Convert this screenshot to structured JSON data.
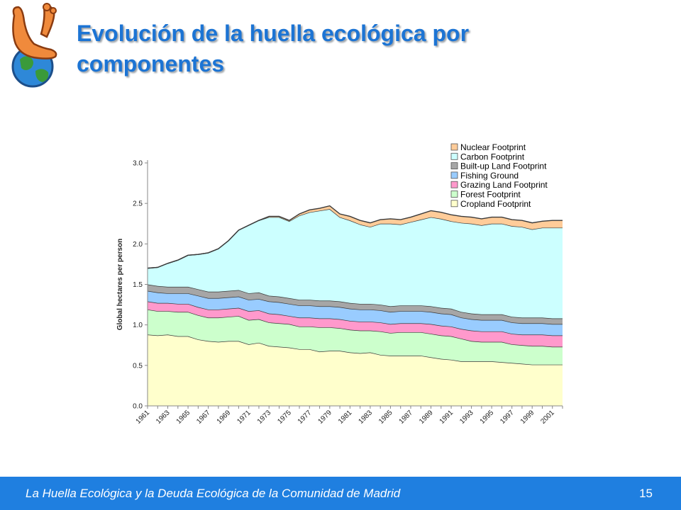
{
  "slide": {
    "title_line1": "Evolución de la huella ecológica por",
    "title_line2": "componentes",
    "footer_text": "La Huella Ecológica y la Deuda Ecológica de la Comunidad de Madrid",
    "page_number": "15",
    "accent_color": "#1c74d4",
    "footer_color": "#1f7fe0"
  },
  "chart_data": {
    "type": "area",
    "stacked": true,
    "ylabel": "Global hectares per person",
    "xlabel": "",
    "ylim": [
      0,
      3.0
    ],
    "yticks": [
      "0.0",
      "0.5",
      "1.0",
      "1.5",
      "2.0",
      "2.5",
      "3.0"
    ],
    "xticks": [
      "1961",
      "1963",
      "1965",
      "1967",
      "1969",
      "1971",
      "1973",
      "1975",
      "1977",
      "1979",
      "1981",
      "1983",
      "1985",
      "1987",
      "1989",
      "1991",
      "1993",
      "1995",
      "1997",
      "1999",
      "2001"
    ],
    "x": [
      1961,
      1962,
      1963,
      1964,
      1965,
      1966,
      1967,
      1968,
      1969,
      1970,
      1971,
      1972,
      1973,
      1974,
      1975,
      1976,
      1977,
      1978,
      1979,
      1980,
      1981,
      1982,
      1983,
      1984,
      1985,
      1986,
      1987,
      1988,
      1989,
      1990,
      1991,
      1992,
      1993,
      1994,
      1995,
      1996,
      1997,
      1998,
      1999,
      2000,
      2001,
      2002
    ],
    "legend_position": "top-right",
    "grid": false,
    "series": [
      {
        "name": "Cropland Footprint",
        "color": "#ffffcc",
        "values": [
          0.88,
          0.87,
          0.88,
          0.86,
          0.86,
          0.82,
          0.8,
          0.79,
          0.8,
          0.8,
          0.76,
          0.78,
          0.74,
          0.73,
          0.72,
          0.7,
          0.7,
          0.67,
          0.68,
          0.68,
          0.66,
          0.65,
          0.66,
          0.63,
          0.62,
          0.62,
          0.62,
          0.62,
          0.6,
          0.58,
          0.57,
          0.55,
          0.55,
          0.55,
          0.55,
          0.54,
          0.53,
          0.52,
          0.51,
          0.51,
          0.51,
          0.51
        ]
      },
      {
        "name": "Forest Footprint",
        "color": "#ccffcc",
        "values": [
          0.31,
          0.3,
          0.29,
          0.3,
          0.3,
          0.3,
          0.29,
          0.3,
          0.3,
          0.31,
          0.3,
          0.29,
          0.29,
          0.29,
          0.29,
          0.28,
          0.28,
          0.3,
          0.29,
          0.28,
          0.28,
          0.28,
          0.27,
          0.29,
          0.28,
          0.29,
          0.29,
          0.29,
          0.29,
          0.29,
          0.29,
          0.28,
          0.25,
          0.24,
          0.24,
          0.25,
          0.23,
          0.23,
          0.23,
          0.23,
          0.22,
          0.22
        ]
      },
      {
        "name": "Grazing Land Footprint",
        "color": "#ff99cc",
        "values": [
          0.1,
          0.1,
          0.1,
          0.1,
          0.1,
          0.1,
          0.1,
          0.1,
          0.1,
          0.1,
          0.11,
          0.11,
          0.11,
          0.11,
          0.1,
          0.11,
          0.11,
          0.11,
          0.11,
          0.11,
          0.11,
          0.11,
          0.11,
          0.11,
          0.11,
          0.11,
          0.11,
          0.11,
          0.12,
          0.12,
          0.12,
          0.12,
          0.13,
          0.13,
          0.13,
          0.13,
          0.13,
          0.13,
          0.14,
          0.14,
          0.14,
          0.14
        ]
      },
      {
        "name": "Fishing Ground",
        "color": "#99ccff",
        "values": [
          0.13,
          0.13,
          0.12,
          0.13,
          0.13,
          0.14,
          0.14,
          0.14,
          0.14,
          0.14,
          0.14,
          0.14,
          0.15,
          0.15,
          0.15,
          0.15,
          0.15,
          0.15,
          0.15,
          0.15,
          0.15,
          0.15,
          0.15,
          0.15,
          0.15,
          0.15,
          0.15,
          0.15,
          0.15,
          0.15,
          0.15,
          0.14,
          0.14,
          0.14,
          0.14,
          0.14,
          0.14,
          0.14,
          0.14,
          0.14,
          0.14,
          0.14
        ]
      },
      {
        "name": "Built-up Land Footprint",
        "color": "#a6a6a6",
        "values": [
          0.08,
          0.08,
          0.08,
          0.08,
          0.08,
          0.08,
          0.08,
          0.08,
          0.08,
          0.08,
          0.08,
          0.08,
          0.07,
          0.07,
          0.07,
          0.07,
          0.07,
          0.07,
          0.07,
          0.07,
          0.07,
          0.07,
          0.07,
          0.07,
          0.07,
          0.07,
          0.07,
          0.07,
          0.07,
          0.07,
          0.07,
          0.07,
          0.07,
          0.07,
          0.07,
          0.07,
          0.07,
          0.07,
          0.07,
          0.07,
          0.07,
          0.07
        ]
      },
      {
        "name": "Carbon Footprint",
        "color": "#ccffff",
        "values": [
          0.2,
          0.23,
          0.29,
          0.33,
          0.39,
          0.43,
          0.48,
          0.53,
          0.62,
          0.74,
          0.84,
          0.89,
          0.97,
          0.98,
          0.95,
          1.04,
          1.08,
          1.11,
          1.13,
          1.04,
          1.02,
          0.98,
          0.95,
          1.0,
          1.02,
          1.0,
          1.03,
          1.06,
          1.1,
          1.1,
          1.08,
          1.1,
          1.11,
          1.1,
          1.12,
          1.12,
          1.12,
          1.12,
          1.09,
          1.11,
          1.12,
          1.12
        ]
      },
      {
        "name": "Nuclear Footprint",
        "color": "#ffcc99",
        "values": [
          0.0,
          0.0,
          0.0,
          0.0,
          0.0,
          0.0,
          0.0,
          0.0,
          0.0,
          0.0,
          0.0,
          0.0,
          0.01,
          0.01,
          0.01,
          0.02,
          0.03,
          0.03,
          0.04,
          0.04,
          0.05,
          0.05,
          0.05,
          0.05,
          0.06,
          0.06,
          0.06,
          0.07,
          0.08,
          0.08,
          0.08,
          0.08,
          0.08,
          0.08,
          0.08,
          0.08,
          0.08,
          0.08,
          0.08,
          0.08,
          0.09,
          0.09
        ]
      }
    ]
  }
}
